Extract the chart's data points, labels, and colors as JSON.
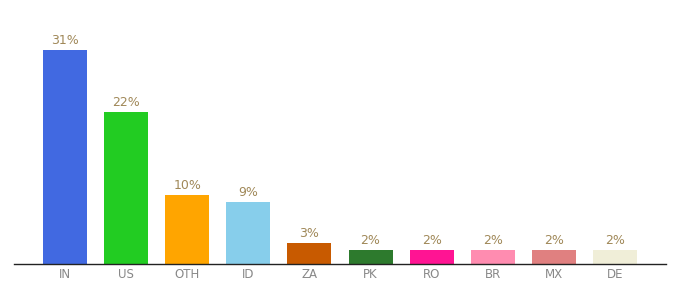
{
  "categories": [
    "IN",
    "US",
    "OTH",
    "ID",
    "ZA",
    "PK",
    "RO",
    "BR",
    "MX",
    "DE"
  ],
  "values": [
    31,
    22,
    10,
    9,
    3,
    2,
    2,
    2,
    2,
    2
  ],
  "bar_colors": [
    "#4169e1",
    "#22cc22",
    "#ffa500",
    "#87ceeb",
    "#c85a00",
    "#2d7a2d",
    "#ff1493",
    "#ff8cb0",
    "#e08080",
    "#f0eed8"
  ],
  "labels": [
    "31%",
    "22%",
    "10%",
    "9%",
    "3%",
    "2%",
    "2%",
    "2%",
    "2%",
    "2%"
  ],
  "ylim": [
    0,
    36
  ],
  "background_color": "#ffffff",
  "label_fontsize": 9,
  "tick_fontsize": 8.5,
  "label_color": "#a08858",
  "tick_color": "#888888",
  "bar_width": 0.72
}
